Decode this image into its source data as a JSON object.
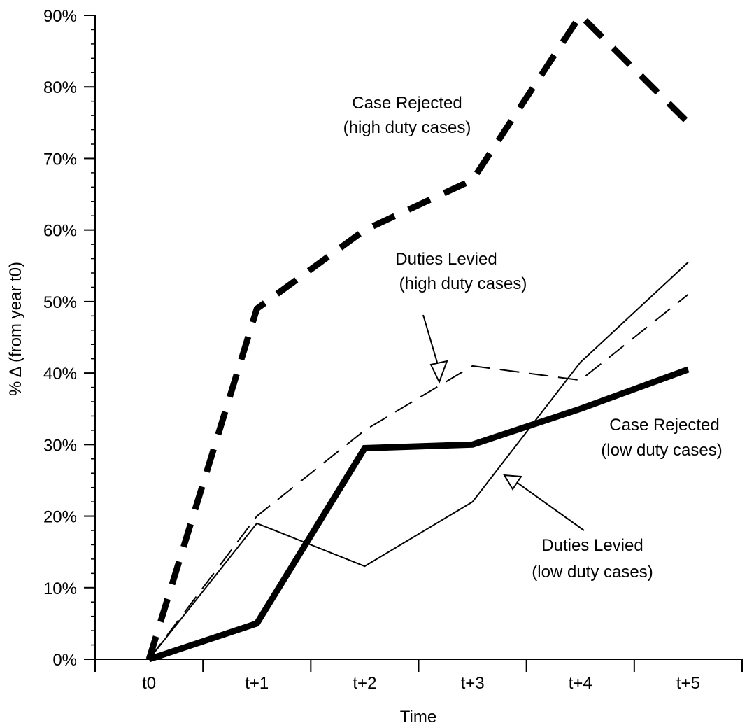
{
  "chart_data": {
    "type": "line",
    "xlabel": "Time",
    "ylabel": "% Δ (from year t0)",
    "categories": [
      "t0",
      "t+1",
      "t+2",
      "t+3",
      "t+4",
      "t+5"
    ],
    "ylim": [
      0,
      90
    ],
    "yticks": [
      0,
      10,
      20,
      30,
      40,
      50,
      60,
      70,
      80,
      90
    ],
    "ytick_labels": [
      "0%",
      "10%",
      "20%",
      "30%",
      "40%",
      "50%",
      "60%",
      "70%",
      "80%",
      "90%"
    ],
    "grid": false,
    "legend": "none",
    "series": [
      {
        "key": "case_rejected_high",
        "values": [
          0,
          49,
          60,
          67,
          90,
          75
        ],
        "style": "thick-dashed",
        "color": "#000000"
      },
      {
        "key": "duties_levied_high",
        "values": [
          0,
          20,
          32,
          41,
          39,
          51
        ],
        "style": "thin-dashed",
        "color": "#000000"
      },
      {
        "key": "case_rejected_low",
        "values": [
          0,
          5,
          29.5,
          30,
          35,
          40.5
        ],
        "style": "thick-solid",
        "color": "#000000"
      },
      {
        "key": "duties_levied_low",
        "values": [
          0,
          19,
          13,
          22,
          41.5,
          55.5
        ],
        "style": "thin-solid",
        "color": "#000000"
      }
    ],
    "annotations": [
      {
        "key": "case_rejected_high",
        "lines": [
          "Case Rejected",
          "(high duty cases)"
        ]
      },
      {
        "key": "duties_levied_high",
        "lines": [
          "Duties Levied",
          "(high duty cases)"
        ]
      },
      {
        "key": "case_rejected_low",
        "lines": [
          "Case Rejected",
          "(low duty cases)"
        ]
      },
      {
        "key": "duties_levied_low",
        "lines": [
          "Duties Levied",
          "(low duty cases)"
        ]
      }
    ]
  }
}
